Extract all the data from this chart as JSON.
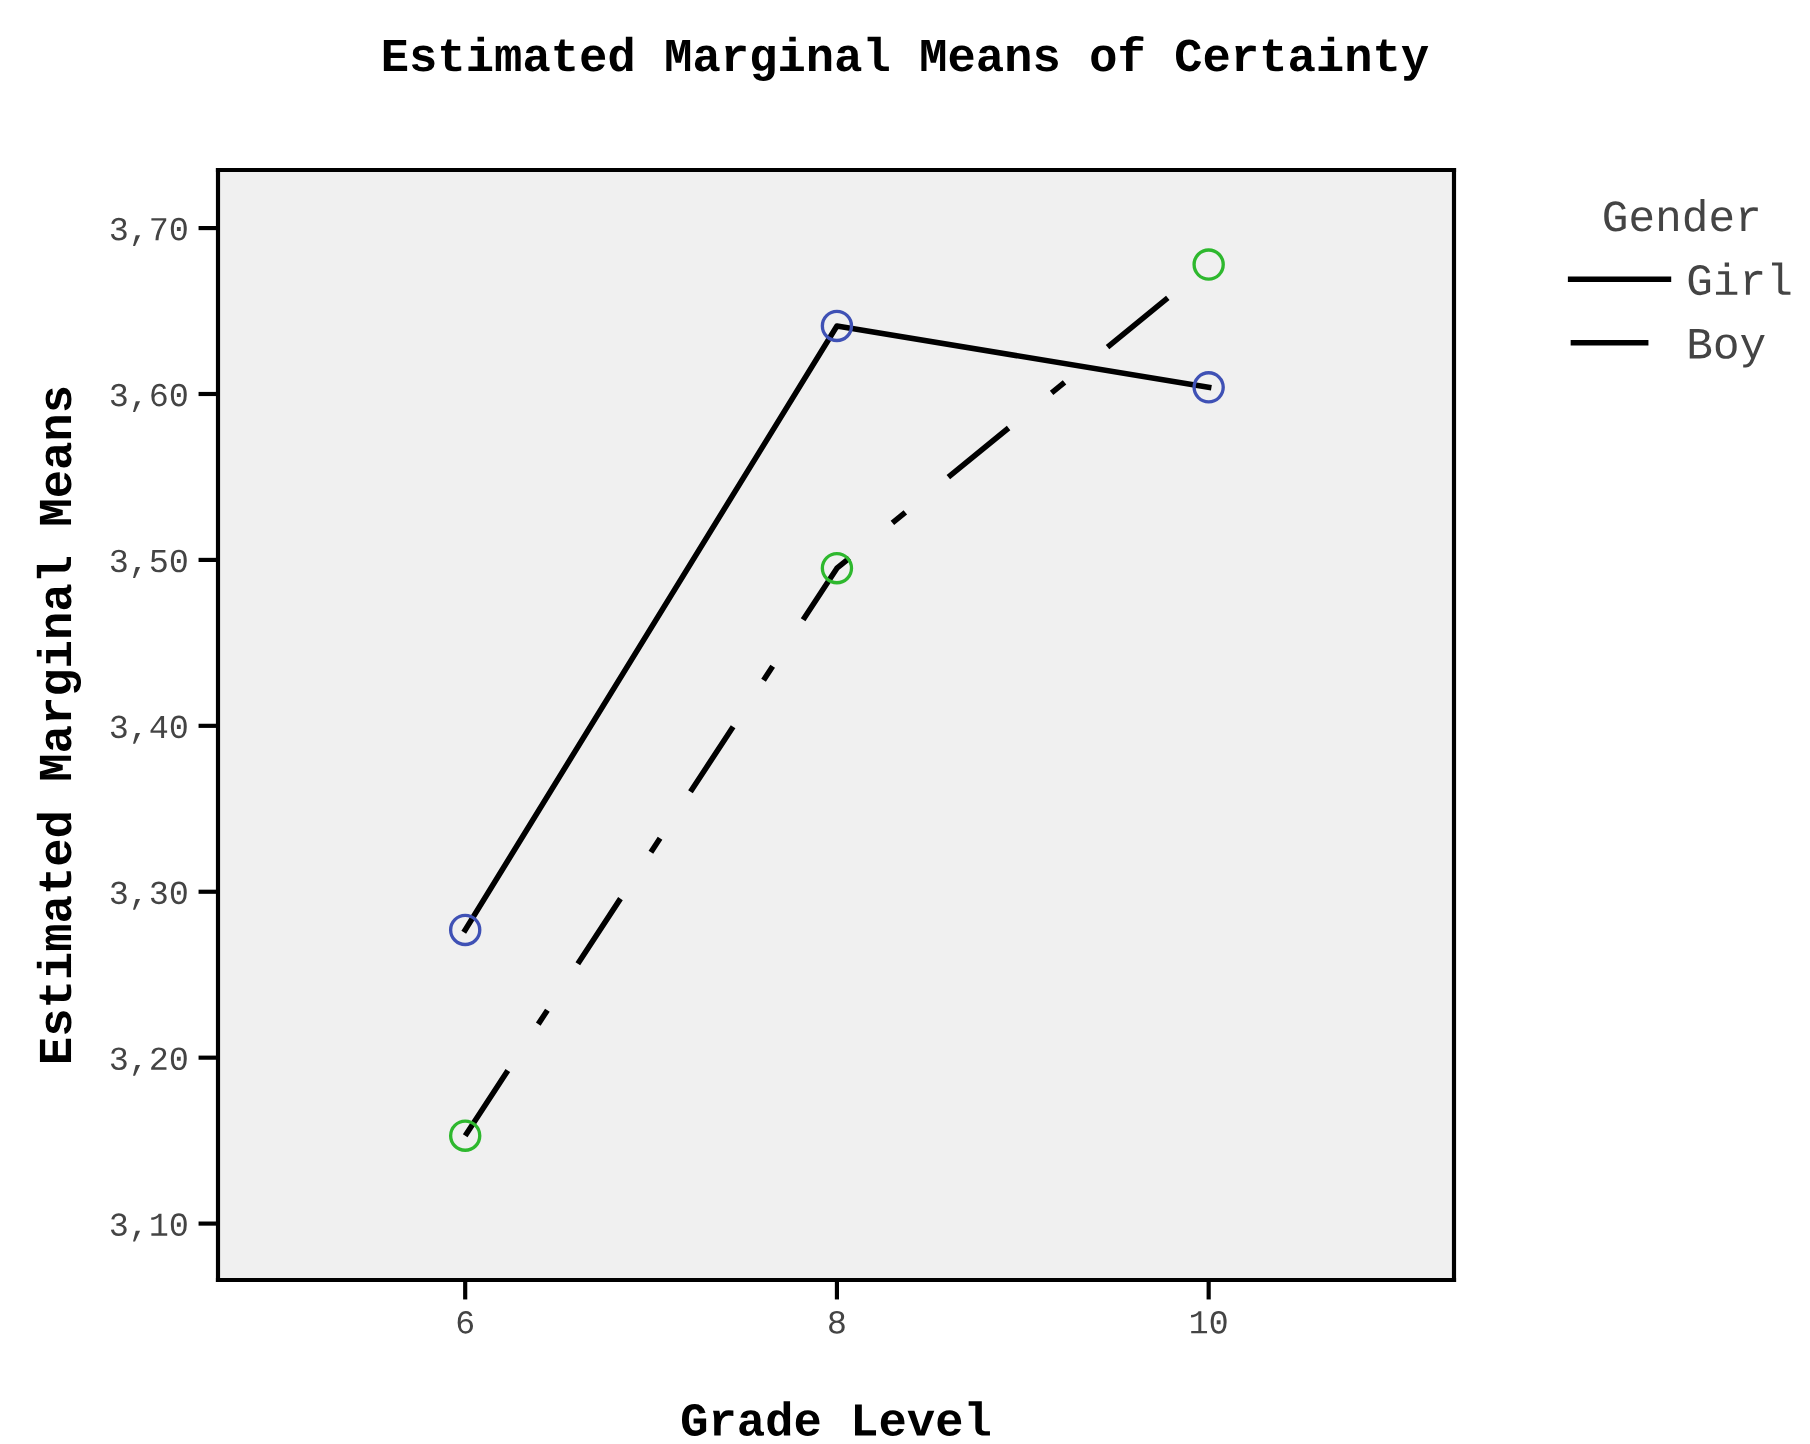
{
  "chart_data": {
    "type": "line",
    "title": "Estimated Marginal Means of Certainty",
    "xlabel": "Grade Level",
    "ylabel": "Estimated Marginal Means",
    "legend_title": "Gender",
    "x": [
      6,
      8,
      10
    ],
    "series": [
      {
        "name": "Girl",
        "color": "#000000",
        "colors": [
          "#3f51b5",
          "#3f51b5",
          "#3f51b5"
        ],
        "line_style": "solid",
        "values": [
          3.277,
          3.641,
          3.604
        ]
      },
      {
        "name": "Boy",
        "color": "#000000",
        "colors": [
          "#2eb82e",
          "#2eb82e",
          "#2eb82e"
        ],
        "line_style": "dashdot",
        "values": [
          3.153,
          3.495,
          3.678
        ]
      }
    ],
    "marker": "circle",
    "xlim": [
      4.67,
      11.32
    ],
    "xticks": [
      6,
      8,
      10
    ],
    "ylim": [
      3.066,
      3.735
    ],
    "yticks": [
      {
        "value": 3.1,
        "label": "3,10"
      },
      {
        "value": 3.2,
        "label": "3,20"
      },
      {
        "value": 3.3,
        "label": "3,30"
      },
      {
        "value": 3.4,
        "label": "3,40"
      },
      {
        "value": 3.5,
        "label": "3,50"
      },
      {
        "value": 3.6,
        "label": "3,60"
      },
      {
        "value": 3.7,
        "label": "3,70"
      }
    ],
    "grid": false,
    "legend": "top right"
  }
}
